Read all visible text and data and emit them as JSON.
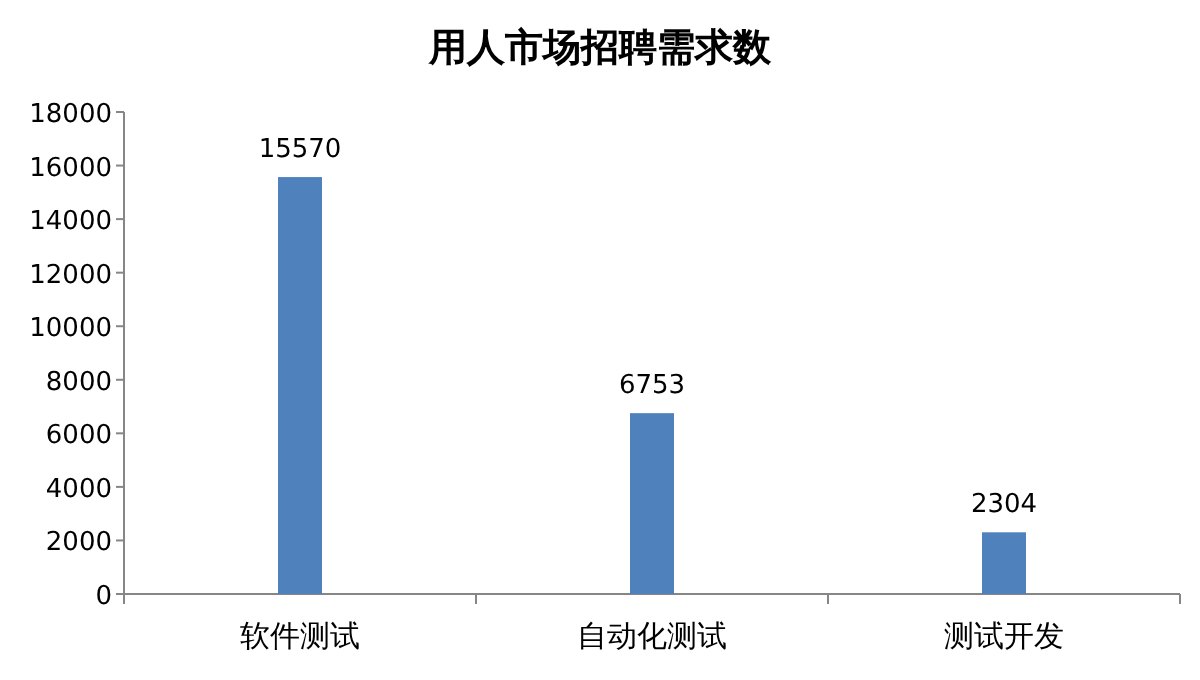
{
  "chart_data": {
    "type": "bar",
    "title": "用人市场招聘需求数",
    "categories": [
      "软件测试",
      "自动化测试",
      "测试开发"
    ],
    "values": [
      15570,
      6753,
      2304
    ],
    "color": "#4f81bd",
    "ylim": [
      0,
      18000
    ],
    "yticks": [
      0,
      2000,
      4000,
      6000,
      8000,
      10000,
      12000,
      14000,
      16000,
      18000
    ],
    "data_labels": true,
    "grid": false
  }
}
